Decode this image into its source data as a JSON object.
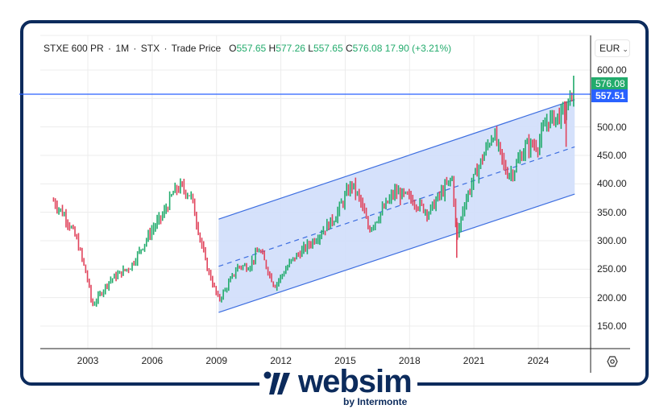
{
  "header": {
    "symbol": "STXE 600 PR",
    "interval": "1M",
    "exchange": "STX",
    "price_type": "Trade Price",
    "open_label": "O",
    "open": "557.65",
    "high_label": "H",
    "high": "577.26",
    "low_label": "L",
    "low": "557.65",
    "close_label": "C",
    "close": "576.08",
    "change": "17.90",
    "change_pct": "(+3.21%)",
    "sep": "·"
  },
  "currency": {
    "label": "EUR",
    "icon": "chevron-down-icon"
  },
  "price_tags": {
    "last": {
      "value": "576.08",
      "color": "#22ab6c"
    },
    "hline": {
      "value": "557.51",
      "color": "#2962ff"
    }
  },
  "colors": {
    "up": "#22ab6c",
    "down": "#e0445c",
    "channel_line": "#3d6ee0",
    "channel_fill": "#d3dffb",
    "frame": "#0c2b5c",
    "grid": "#ececec"
  },
  "brand": {
    "name": "websim",
    "tagline": "by Intermonte"
  },
  "chart_data": {
    "type": "bar",
    "title": "STXE 600 PR · 1M · STX · Trade Price",
    "xlabel": "",
    "ylabel": "EUR",
    "ylim": [
      120,
      620
    ],
    "y_ticks": [
      "600.00",
      "500.00",
      "450.00",
      "400.00",
      "350.00",
      "300.00",
      "250.00",
      "200.00",
      "150.00"
    ],
    "x_ticks": [
      "2003",
      "2006",
      "2009",
      "2012",
      "2015",
      "2018",
      "2021",
      "2024"
    ],
    "grid": true,
    "ohlc_last": {
      "open": 557.65,
      "high": 577.26,
      "low": 557.65,
      "close": 576.08,
      "change": 17.9,
      "change_pct": 3.21
    },
    "horizontal_line": 557.51,
    "price_path": {
      "x": [
        2001.4,
        2002.0,
        2002.5,
        2003.0,
        2003.2,
        2004.0,
        2005.0,
        2006.0,
        2006.5,
        2007.0,
        2007.3,
        2007.8,
        2008.5,
        2009.1,
        2009.5,
        2010.0,
        2010.5,
        2011.0,
        2011.7,
        2012.5,
        2013.5,
        2014.5,
        2015.3,
        2015.7,
        2016.1,
        2016.5,
        2017.3,
        2018.0,
        2018.9,
        2019.5,
        2020.0,
        2020.2,
        2020.5,
        2021.0,
        2021.9,
        2022.5,
        2022.8,
        2023.4,
        2024.0,
        2024.4,
        2025.0,
        2025.3,
        2025.5,
        2025.7
      ],
      "close": [
        370,
        340,
        300,
        230,
        185,
        230,
        255,
        320,
        345,
        385,
        395,
        380,
        260,
        195,
        220,
        255,
        255,
        285,
        220,
        265,
        300,
        340,
        400,
        370,
        320,
        340,
        385,
        375,
        350,
        385,
        410,
        300,
        360,
        410,
        490,
        420,
        420,
        465,
        470,
        510,
        520,
        530,
        550,
        576
      ]
    },
    "regression_channel": {
      "start_x": 2009.1,
      "end_x": 2025.7,
      "upper": [
        338,
        548
      ],
      "mid": [
        255,
        465
      ],
      "lower": [
        174,
        382
      ]
    }
  }
}
